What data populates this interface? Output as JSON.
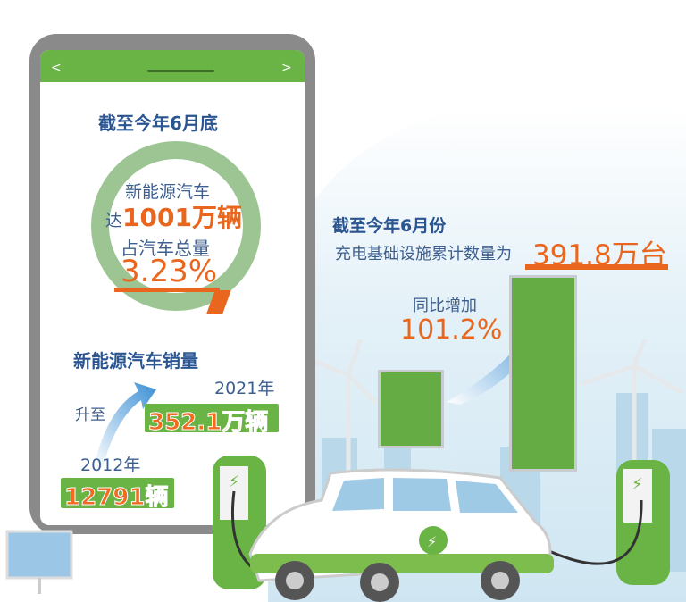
{
  "phone": {
    "nav_back": "<",
    "nav_forward": ">",
    "title": "截至今年6月底",
    "ring": {
      "line1": "新能源汽车",
      "line2_prefix": "达",
      "line2_value": "1001万辆",
      "line3": "占汽车总量",
      "line4_value": "3.23%",
      "share_percent": 3.23
    },
    "sales": {
      "title": "新能源汽车销量",
      "rise_label": "升至",
      "year_2021": "2021年",
      "value_2021": "352.1万辆",
      "year_2012": "2012年",
      "value_2012": "12791辆"
    }
  },
  "charging": {
    "title": "截至今年6月份",
    "subtitle": "充电基础设施累计数量为",
    "total": "391.8万台",
    "growth_label": "同比增加",
    "growth_value": "101.2%"
  },
  "colors": {
    "green": "#6ab446",
    "orange": "#e8661e",
    "blue": "#2a5591",
    "ring": "#9dc593"
  }
}
